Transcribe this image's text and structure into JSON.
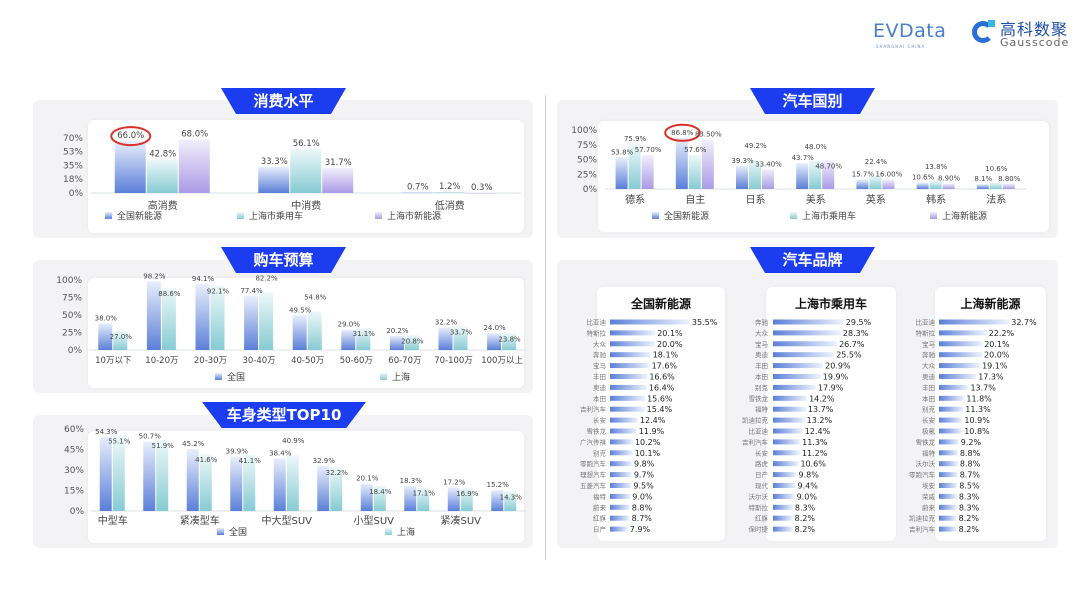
{
  "logos": {
    "evdata": "EVData",
    "evdata_sub": "SHANGHAI CHINA",
    "gauss_cn": "高科数聚",
    "gauss_en": "Gausscode"
  },
  "colors": {
    "banner": "#1c3cf0",
    "series": [
      "#5b7fd8",
      "#86cbd3",
      "#a99be6"
    ],
    "highlight_circle": "#d9302a"
  },
  "sections": {
    "consumption": "消费水平",
    "budget": "购车预算",
    "body_type": "车身类型TOP10",
    "country": "汽车国别",
    "brand": "汽车品牌"
  },
  "chart_data": [
    {
      "type": "bar",
      "title": "消费水平",
      "categories": [
        "高消费",
        "中消费",
        "低消费"
      ],
      "series": [
        {
          "name": "全国新能源",
          "values": [
            66.0,
            33.3,
            0.7
          ],
          "decimals": 1
        },
        {
          "name": "上海市乘用车",
          "values": [
            42.8,
            56.1,
            1.2
          ],
          "decimals": 1
        },
        {
          "name": "上海市新能源",
          "values": [
            68.0,
            31.7,
            0.3
          ],
          "decimals": 1
        }
      ],
      "ylim": [
        0,
        70
      ],
      "yticks": [
        "0%",
        "18%",
        "35%",
        "53%",
        "70%"
      ],
      "highlight": {
        "series": 0,
        "category": 0
      },
      "legend": "bottom"
    },
    {
      "type": "bar",
      "title": "购车预算",
      "categories": [
        "10万以下",
        "10-20万",
        "20-30万",
        "30-40万",
        "40-50万",
        "50-60万",
        "60-70万",
        "70-100万",
        "100万以上"
      ],
      "series": [
        {
          "name": "全国",
          "values": [
            38.0,
            98.2,
            94.1,
            77.4,
            49.5,
            29.0,
            20.2,
            32.2,
            24.0
          ],
          "decimals": 1
        },
        {
          "name": "上海",
          "values": [
            27.0,
            88.6,
            92.1,
            82.2,
            54.8,
            31.1,
            20.8,
            33.7,
            23.8
          ],
          "decimals": 1
        }
      ],
      "ylim": [
        0,
        100
      ],
      "yticks": [
        "0%",
        "25%",
        "50%",
        "75%",
        "100%"
      ],
      "legend": "bottom"
    },
    {
      "type": "bar",
      "title": "车身类型TOP10",
      "categories": [
        "中型车",
        "",
        "紧凑型车",
        "",
        "中大型SUV",
        "",
        "小型SUV",
        "",
        "紧凑SUV",
        ""
      ],
      "series": [
        {
          "name": "全国",
          "values": [
            54.3,
            50.7,
            45.2,
            39.9,
            38.4,
            32.9,
            20.1,
            18.3,
            17.2,
            15.2
          ],
          "decimals": 1
        },
        {
          "name": "上海",
          "values": [
            55.1,
            51.9,
            41.6,
            41.1,
            40.9,
            32.2,
            18.4,
            17.1,
            16.9,
            14.3
          ],
          "decimals": 1
        }
      ],
      "ylim": [
        0,
        60
      ],
      "yticks": [
        "0%",
        "15%",
        "30%",
        "45%",
        "60%"
      ],
      "legend": "bottom"
    },
    {
      "type": "bar",
      "title": "汽车国别",
      "categories": [
        "德系",
        "自主",
        "日系",
        "美系",
        "英系",
        "韩系",
        "法系"
      ],
      "series": [
        {
          "name": "全国新能源",
          "values": [
            53.8,
            86.8,
            39.3,
            43.7,
            15.7,
            10.6,
            8.1
          ],
          "decimals": 1
        },
        {
          "name": "上海市乘用车",
          "values": [
            75.9,
            57.6,
            49.2,
            48.0,
            22.4,
            13.8,
            10.6
          ],
          "decimals": 1
        },
        {
          "name": "上海新能源",
          "values": [
            57.7,
            83.5,
            33.4,
            48.7,
            16.0,
            8.9,
            8.8
          ],
          "decimals": 2
        }
      ],
      "ylim": [
        0,
        100
      ],
      "yticks": [
        "0%",
        "25%",
        "50%",
        "75%",
        "100%"
      ],
      "highlight": {
        "series": 0,
        "category": 1
      },
      "legend": "bottom"
    },
    {
      "type": "bar",
      "orientation": "horizontal",
      "title": "全国新能源",
      "categories": [
        "比亚迪",
        "特斯拉",
        "大众",
        "奔驰",
        "宝马",
        "丰田",
        "奥迪",
        "本田",
        "吉利汽车",
        "长安",
        "雪铁龙",
        "广汽传祺",
        "别克",
        "零跑汽车",
        "理想汽车",
        "五菱汽车",
        "福特",
        "蔚来",
        "红旗",
        "日产"
      ],
      "values": [
        35.5,
        20.1,
        20.0,
        18.1,
        17.6,
        16.6,
        16.4,
        15.6,
        15.4,
        12.4,
        11.9,
        10.2,
        10.1,
        9.8,
        9.7,
        9.5,
        9.0,
        8.8,
        8.7,
        7.9
      ]
    },
    {
      "type": "bar",
      "orientation": "horizontal",
      "title": "上海市乘用车",
      "categories": [
        "奔驰",
        "大众",
        "宝马",
        "奥迪",
        "丰田",
        "本田",
        "别克",
        "雪铁龙",
        "福特",
        "凯迪拉克",
        "比亚迪",
        "吉利汽车",
        "长安",
        "路虎",
        "日产",
        "现代",
        "沃尔沃",
        "特斯拉",
        "红旗",
        "保时捷"
      ],
      "values": [
        29.5,
        28.3,
        26.7,
        25.5,
        20.9,
        19.9,
        17.9,
        14.2,
        13.7,
        13.2,
        12.4,
        11.3,
        11.2,
        10.6,
        9.8,
        9.4,
        9.0,
        8.3,
        8.2,
        8.2
      ]
    },
    {
      "type": "bar",
      "orientation": "horizontal",
      "title": "上海新能源",
      "categories": [
        "比亚迪",
        "特斯拉",
        "宝马",
        "奔驰",
        "大众",
        "奥迪",
        "丰田",
        "本田",
        "别克",
        "长安",
        "极氪",
        "雪铁龙",
        "福特",
        "沃尔沃",
        "零跑汽车",
        "埃安",
        "荣威",
        "蔚来",
        "凯迪拉克",
        "吉利汽车"
      ],
      "values": [
        32.7,
        22.2,
        20.1,
        20.0,
        19.1,
        17.3,
        13.7,
        11.8,
        11.3,
        10.9,
        10.8,
        9.2,
        8.8,
        8.8,
        8.7,
        8.5,
        8.3,
        8.3,
        8.2,
        8.2
      ]
    }
  ]
}
